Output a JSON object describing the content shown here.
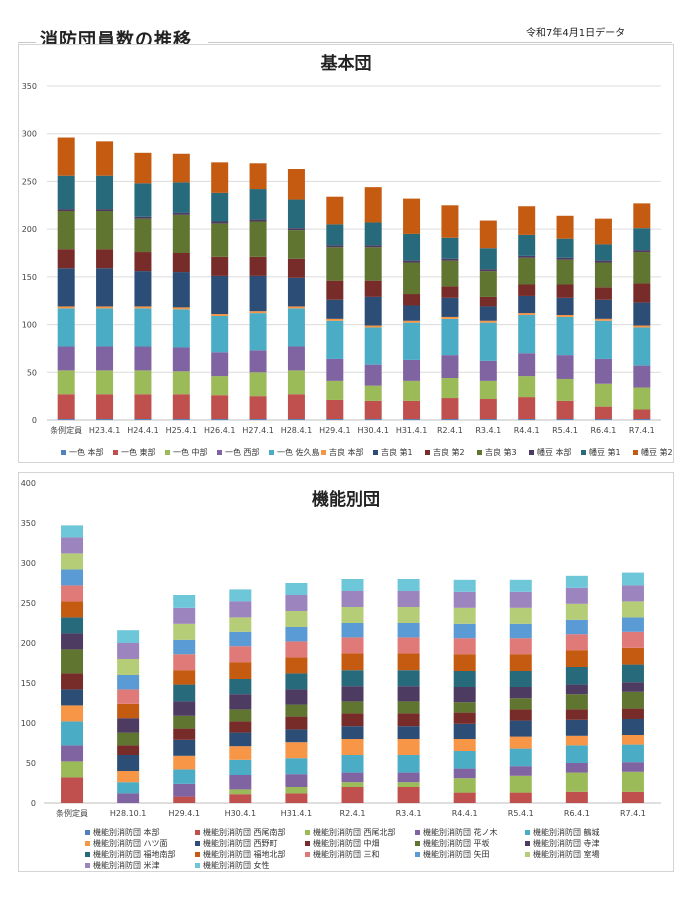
{
  "header": {
    "title": "消防団員数の推移",
    "date": "令和7年4月1日データ"
  },
  "chart_data": [
    {
      "type": "bar",
      "stacked": true,
      "title": "基本団",
      "ylim": [
        0,
        350
      ],
      "yticks": [
        0,
        50,
        100,
        150,
        200,
        250,
        300,
        350
      ],
      "grid": true,
      "legend": "bottom",
      "categories": [
        "条例定員",
        "H23.4.1",
        "H24.4.1",
        "H25.4.1",
        "H26.4.1",
        "H27.4.1",
        "H28.4.1",
        "H29.4.1",
        "H30.4.1",
        "H31.4.1",
        "R2.4.1",
        "R3.4.1",
        "R4.4.1",
        "R5.4.1",
        "R6.4.1",
        "R7.4.1"
      ],
      "series": [
        {
          "name": "一色 本部",
          "color": "#4e81bd",
          "values": [
            1,
            1,
            1,
            1,
            1,
            1,
            1,
            1,
            1,
            1,
            1,
            1,
            1,
            1,
            1,
            1
          ]
        },
        {
          "name": "一色 東部",
          "color": "#c0504d",
          "values": [
            26,
            26,
            26,
            26,
            25,
            24,
            26,
            20,
            19,
            19,
            22,
            21,
            23,
            19,
            13,
            10
          ]
        },
        {
          "name": "一色 中部",
          "color": "#9bbb59",
          "values": [
            25,
            25,
            25,
            24,
            20,
            25,
            25,
            20,
            16,
            21,
            21,
            19,
            22,
            23,
            24,
            23
          ]
        },
        {
          "name": "一色 西部",
          "color": "#8064a2",
          "values": [
            25,
            25,
            25,
            25,
            25,
            23,
            25,
            23,
            22,
            22,
            24,
            21,
            24,
            25,
            26,
            23
          ]
        },
        {
          "name": "一色 佐久島",
          "color": "#4bacc6",
          "values": [
            40,
            40,
            40,
            40,
            38,
            39,
            40,
            40,
            39,
            39,
            38,
            40,
            40,
            40,
            40,
            40
          ]
        },
        {
          "name": "吉良 本部",
          "color": "#f79646",
          "values": [
            2,
            2,
            2,
            2,
            2,
            2,
            2,
            2,
            2,
            2,
            2,
            2,
            2,
            2,
            2,
            2
          ]
        },
        {
          "name": "吉良 第1",
          "color": "#2c4d75",
          "values": [
            40,
            40,
            37,
            37,
            40,
            37,
            30,
            20,
            30,
            16,
            20,
            15,
            18,
            18,
            20,
            24
          ]
        },
        {
          "name": "吉良 第2",
          "color": "#772c2a",
          "values": [
            20,
            20,
            20,
            20,
            20,
            20,
            20,
            20,
            17,
            12,
            12,
            10,
            12,
            14,
            13,
            20
          ]
        },
        {
          "name": "吉良 第3",
          "color": "#5f7530",
          "values": [
            40,
            40,
            35,
            40,
            35,
            37,
            30,
            35,
            35,
            33,
            27,
            27,
            28,
            26,
            26,
            33
          ]
        },
        {
          "name": "幡豆 本部",
          "color": "#4d3b62",
          "values": [
            2,
            2,
            2,
            2,
            2,
            2,
            2,
            2,
            2,
            2,
            2,
            2,
            2,
            2,
            2,
            2
          ]
        },
        {
          "name": "幡豆 第1",
          "color": "#276a7c",
          "values": [
            35,
            35,
            35,
            32,
            30,
            32,
            30,
            22,
            24,
            28,
            22,
            22,
            22,
            20,
            17,
            23
          ]
        },
        {
          "name": "幡豆 第2",
          "color": "#c55a11",
          "values": [
            40,
            36,
            32,
            30,
            32,
            27,
            32,
            29,
            37,
            37,
            34,
            29,
            30,
            24,
            27,
            26
          ]
        }
      ]
    },
    {
      "type": "bar",
      "stacked": true,
      "title": "機能別団",
      "ylim": [
        0,
        400
      ],
      "yticks": [
        0,
        50,
        100,
        150,
        200,
        250,
        300,
        350,
        400
      ],
      "grid": false,
      "legend": "bottom",
      "categories": [
        "条例定員",
        "H28.10.1",
        "H29.4.1",
        "H30.4.1",
        "H31.4.1",
        "R2.4.1",
        "R3.4.1",
        "R4.4.1",
        "R5.4.1",
        "R6.4.1",
        "R7.4.1"
      ],
      "series": [
        {
          "name": "機能別消防団 本部",
          "color": "#4e81bd",
          "values": [
            0,
            0,
            0,
            0,
            0,
            0,
            0,
            0,
            0,
            0,
            0
          ]
        },
        {
          "name": "機能別消防団 西尾南部",
          "color": "#c0504d",
          "values": [
            32,
            0,
            8,
            11,
            12,
            20,
            20,
            13,
            13,
            14,
            14
          ]
        },
        {
          "name": "機能別消防団 西尾北部",
          "color": "#9bbb59",
          "values": [
            20,
            0,
            0,
            6,
            8,
            6,
            6,
            18,
            21,
            24,
            25
          ]
        },
        {
          "name": "機能別消防団 花ノ木",
          "color": "#8064a2",
          "values": [
            20,
            12,
            16,
            18,
            16,
            12,
            12,
            12,
            12,
            12,
            12
          ]
        },
        {
          "name": "機能別消防団 鶴城",
          "color": "#4bacc6",
          "values": [
            30,
            14,
            18,
            19,
            20,
            22,
            22,
            22,
            22,
            22,
            22
          ]
        },
        {
          "name": "機能別消防団 ハツ面",
          "color": "#f79646",
          "values": [
            20,
            14,
            17,
            17,
            20,
            20,
            20,
            15,
            15,
            12,
            12
          ]
        },
        {
          "name": "機能別消防団 西野町",
          "color": "#2c4d75",
          "values": [
            20,
            20,
            20,
            17,
            16,
            16,
            16,
            19,
            20,
            20,
            20
          ]
        },
        {
          "name": "機能別消防団 中畑",
          "color": "#772c2a",
          "values": [
            20,
            12,
            14,
            14,
            16,
            16,
            16,
            14,
            14,
            13,
            13
          ]
        },
        {
          "name": "機能別消防団 平坂",
          "color": "#5f7530",
          "values": [
            30,
            16,
            16,
            15,
            15,
            15,
            15,
            13,
            14,
            19,
            21
          ]
        },
        {
          "name": "機能別消防団 寺津",
          "color": "#4d3b62",
          "values": [
            20,
            18,
            18,
            19,
            19,
            19,
            19,
            19,
            14,
            12,
            12
          ]
        },
        {
          "name": "機能別消防団 福地南部",
          "color": "#276a7c",
          "values": [
            20,
            0,
            21,
            19,
            20,
            20,
            20,
            20,
            20,
            22,
            22
          ]
        },
        {
          "name": "機能別消防団 福地北部",
          "color": "#c55a11",
          "values": [
            20,
            18,
            18,
            21,
            20,
            21,
            21,
            21,
            21,
            21,
            21
          ]
        },
        {
          "name": "機能別消防団 三和",
          "color": "#e07a79",
          "values": [
            20,
            18,
            20,
            20,
            20,
            20,
            20,
            20,
            20,
            20,
            20
          ]
        },
        {
          "name": "機能別消防団 矢田",
          "color": "#5b9bd5",
          "values": [
            20,
            18,
            18,
            18,
            18,
            18,
            18,
            18,
            18,
            18,
            18
          ]
        },
        {
          "name": "機能別消防団 室場",
          "color": "#b4cd76",
          "values": [
            20,
            20,
            20,
            18,
            20,
            20,
            20,
            20,
            20,
            20,
            20
          ]
        },
        {
          "name": "機能別消防団 米津",
          "color": "#9c84bf",
          "values": [
            20,
            20,
            20,
            20,
            20,
            20,
            20,
            20,
            20,
            20,
            20
          ]
        },
        {
          "name": "機能別消防団 女性",
          "color": "#6ec6d9",
          "values": [
            15,
            16,
            16,
            15,
            15,
            15,
            15,
            15,
            15,
            15,
            16
          ]
        }
      ]
    }
  ]
}
